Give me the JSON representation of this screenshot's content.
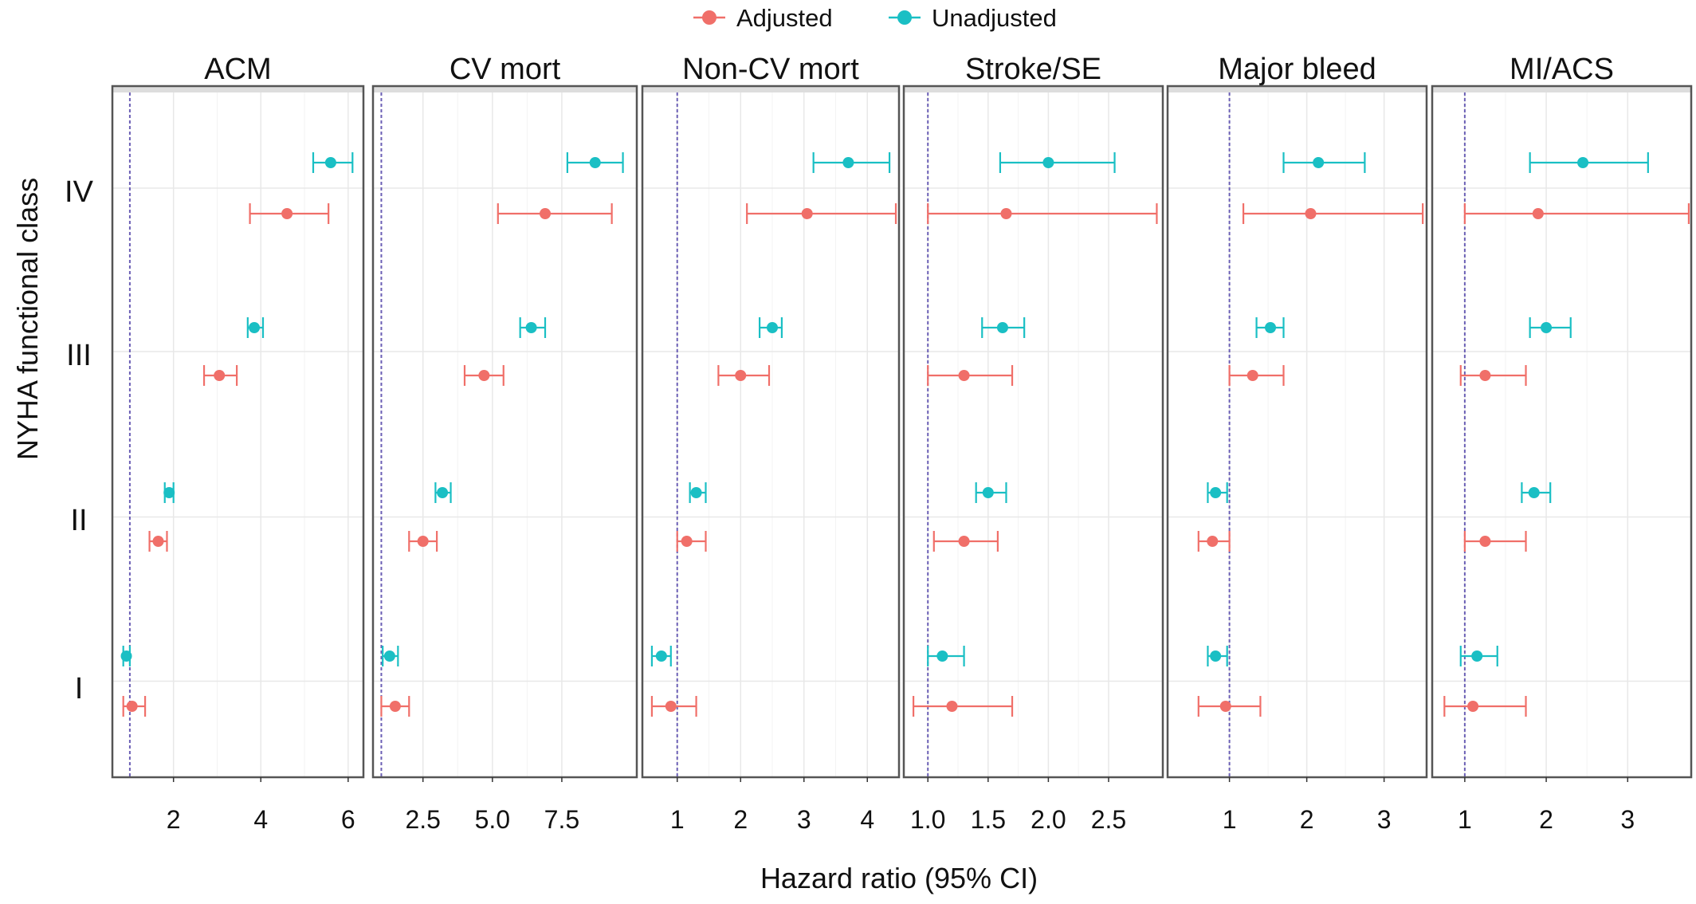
{
  "colors": {
    "adjusted": "#F06F69",
    "unadjusted": "#1ABFC4",
    "reference_line": "#6B5FB5",
    "panel_border": "#555555",
    "strip_bg": "#DDDDDD",
    "grid_major": "#E8E8E8",
    "grid_minor": "#F3F3F3"
  },
  "legend": {
    "position": "top-center",
    "items": [
      {
        "key": "adjusted",
        "label": "Adjusted"
      },
      {
        "key": "unadjusted",
        "label": "Unadjusted"
      }
    ]
  },
  "axes": {
    "xlabel": "Hazard ratio (95% CI)",
    "ylabel": "NYHA functional class",
    "y_categories": [
      "I",
      "II",
      "III",
      "IV"
    ]
  },
  "chart_data": [
    {
      "type": "forest",
      "title": "ACM",
      "xlim": [
        0.6,
        6.35
      ],
      "xticks": [
        2,
        4,
        6
      ],
      "xtick_labels": [
        "2",
        "4",
        "6"
      ],
      "reference": 1,
      "rows": [
        {
          "class": "I",
          "adjusted": {
            "est": 1.05,
            "lo": 0.85,
            "hi": 1.35
          },
          "unadjusted": {
            "est": 0.92,
            "lo": 0.85,
            "hi": 1.0
          }
        },
        {
          "class": "II",
          "adjusted": {
            "est": 1.65,
            "lo": 1.45,
            "hi": 1.85
          },
          "unadjusted": {
            "est": 1.9,
            "lo": 1.8,
            "hi": 2.0
          }
        },
        {
          "class": "III",
          "adjusted": {
            "est": 3.05,
            "lo": 2.7,
            "hi": 3.45
          },
          "unadjusted": {
            "est": 3.85,
            "lo": 3.7,
            "hi": 4.05
          }
        },
        {
          "class": "IV",
          "adjusted": {
            "est": 4.6,
            "lo": 3.75,
            "hi": 5.55
          },
          "unadjusted": {
            "est": 5.6,
            "lo": 5.2,
            "hi": 6.1
          }
        }
      ]
    },
    {
      "type": "forest",
      "title": "CV mort",
      "xlim": [
        0.7,
        10.2
      ],
      "xticks": [
        2.5,
        5.0,
        7.5
      ],
      "xtick_labels": [
        "2.5",
        "5.0",
        "7.5"
      ],
      "reference": 1,
      "rows": [
        {
          "class": "I",
          "adjusted": {
            "est": 1.5,
            "lo": 1.0,
            "hi": 2.0
          },
          "unadjusted": {
            "est": 1.3,
            "lo": 1.05,
            "hi": 1.6
          }
        },
        {
          "class": "II",
          "adjusted": {
            "est": 2.5,
            "lo": 2.0,
            "hi": 3.0
          },
          "unadjusted": {
            "est": 3.2,
            "lo": 2.95,
            "hi": 3.5
          }
        },
        {
          "class": "III",
          "adjusted": {
            "est": 4.7,
            "lo": 4.0,
            "hi": 5.4
          },
          "unadjusted": {
            "est": 6.4,
            "lo": 6.0,
            "hi": 6.9
          }
        },
        {
          "class": "IV",
          "adjusted": {
            "est": 6.9,
            "lo": 5.2,
            "hi": 9.3
          },
          "unadjusted": {
            "est": 8.7,
            "lo": 7.7,
            "hi": 9.7
          }
        }
      ]
    },
    {
      "type": "forest",
      "title": "Non-CV mort",
      "xlim": [
        0.45,
        4.5
      ],
      "xticks": [
        1,
        2,
        3,
        4
      ],
      "xtick_labels": [
        "1",
        "2",
        "3",
        "4"
      ],
      "reference": 1,
      "rows": [
        {
          "class": "I",
          "adjusted": {
            "est": 0.9,
            "lo": 0.6,
            "hi": 1.3
          },
          "unadjusted": {
            "est": 0.75,
            "lo": 0.6,
            "hi": 0.9
          }
        },
        {
          "class": "II",
          "adjusted": {
            "est": 1.15,
            "lo": 1.0,
            "hi": 1.45
          },
          "unadjusted": {
            "est": 1.3,
            "lo": 1.2,
            "hi": 1.45
          }
        },
        {
          "class": "III",
          "adjusted": {
            "est": 2.0,
            "lo": 1.65,
            "hi": 2.45
          },
          "unadjusted": {
            "est": 2.5,
            "lo": 2.3,
            "hi": 2.65
          }
        },
        {
          "class": "IV",
          "adjusted": {
            "est": 3.05,
            "lo": 2.1,
            "hi": 4.45
          },
          "unadjusted": {
            "est": 3.7,
            "lo": 3.15,
            "hi": 4.35
          }
        }
      ]
    },
    {
      "type": "forest",
      "title": "Stroke/SE",
      "xlim": [
        0.8,
        2.95
      ],
      "xticks": [
        1.0,
        1.5,
        2.0,
        2.5
      ],
      "xtick_labels": [
        "1.0",
        "1.5",
        "2.0",
        "2.5"
      ],
      "reference": 1,
      "rows": [
        {
          "class": "I",
          "adjusted": {
            "est": 1.2,
            "lo": 0.88,
            "hi": 1.7
          },
          "unadjusted": {
            "est": 1.12,
            "lo": 1.0,
            "hi": 1.3
          }
        },
        {
          "class": "II",
          "adjusted": {
            "est": 1.3,
            "lo": 1.05,
            "hi": 1.58
          },
          "unadjusted": {
            "est": 1.5,
            "lo": 1.4,
            "hi": 1.65
          }
        },
        {
          "class": "III",
          "adjusted": {
            "est": 1.3,
            "lo": 1.0,
            "hi": 1.7
          },
          "unadjusted": {
            "est": 1.62,
            "lo": 1.45,
            "hi": 1.8
          }
        },
        {
          "class": "IV",
          "adjusted": {
            "est": 1.65,
            "lo": 1.0,
            "hi": 2.9
          },
          "unadjusted": {
            "est": 2.0,
            "lo": 1.6,
            "hi": 2.55
          }
        }
      ]
    },
    {
      "type": "forest",
      "title": "Major bleed",
      "xlim": [
        0.2,
        3.55
      ],
      "xticks": [
        1,
        2,
        3
      ],
      "xtick_labels": [
        "1",
        "2",
        "3"
      ],
      "reference": 1,
      "rows": [
        {
          "class": "I",
          "adjusted": {
            "est": 0.95,
            "lo": 0.6,
            "hi": 1.4
          },
          "unadjusted": {
            "est": 0.82,
            "lo": 0.72,
            "hi": 0.97
          }
        },
        {
          "class": "II",
          "adjusted": {
            "est": 0.78,
            "lo": 0.6,
            "hi": 1.0
          },
          "unadjusted": {
            "est": 0.82,
            "lo": 0.72,
            "hi": 0.97
          }
        },
        {
          "class": "III",
          "adjusted": {
            "est": 1.3,
            "lo": 1.0,
            "hi": 1.7
          },
          "unadjusted": {
            "est": 1.53,
            "lo": 1.35,
            "hi": 1.7
          }
        },
        {
          "class": "IV",
          "adjusted": {
            "est": 2.05,
            "lo": 1.18,
            "hi": 3.5
          },
          "unadjusted": {
            "est": 2.15,
            "lo": 1.7,
            "hi": 2.75
          }
        }
      ]
    },
    {
      "type": "forest",
      "title": "MI/ACS",
      "xlim": [
        0.6,
        3.78
      ],
      "xticks": [
        1,
        2,
        3
      ],
      "xtick_labels": [
        "1",
        "2",
        "3"
      ],
      "reference": 1,
      "rows": [
        {
          "class": "I",
          "adjusted": {
            "est": 1.1,
            "lo": 0.75,
            "hi": 1.75
          },
          "unadjusted": {
            "est": 1.15,
            "lo": 0.95,
            "hi": 1.4
          }
        },
        {
          "class": "II",
          "adjusted": {
            "est": 1.25,
            "lo": 1.0,
            "hi": 1.75
          },
          "unadjusted": {
            "est": 1.85,
            "lo": 1.7,
            "hi": 2.05
          }
        },
        {
          "class": "III",
          "adjusted": {
            "est": 1.25,
            "lo": 0.95,
            "hi": 1.75
          },
          "unadjusted": {
            "est": 2.0,
            "lo": 1.8,
            "hi": 2.3
          }
        },
        {
          "class": "IV",
          "adjusted": {
            "est": 1.9,
            "lo": 1.0,
            "hi": 3.75
          },
          "unadjusted": {
            "est": 2.45,
            "lo": 1.8,
            "hi": 3.25
          }
        }
      ]
    }
  ]
}
